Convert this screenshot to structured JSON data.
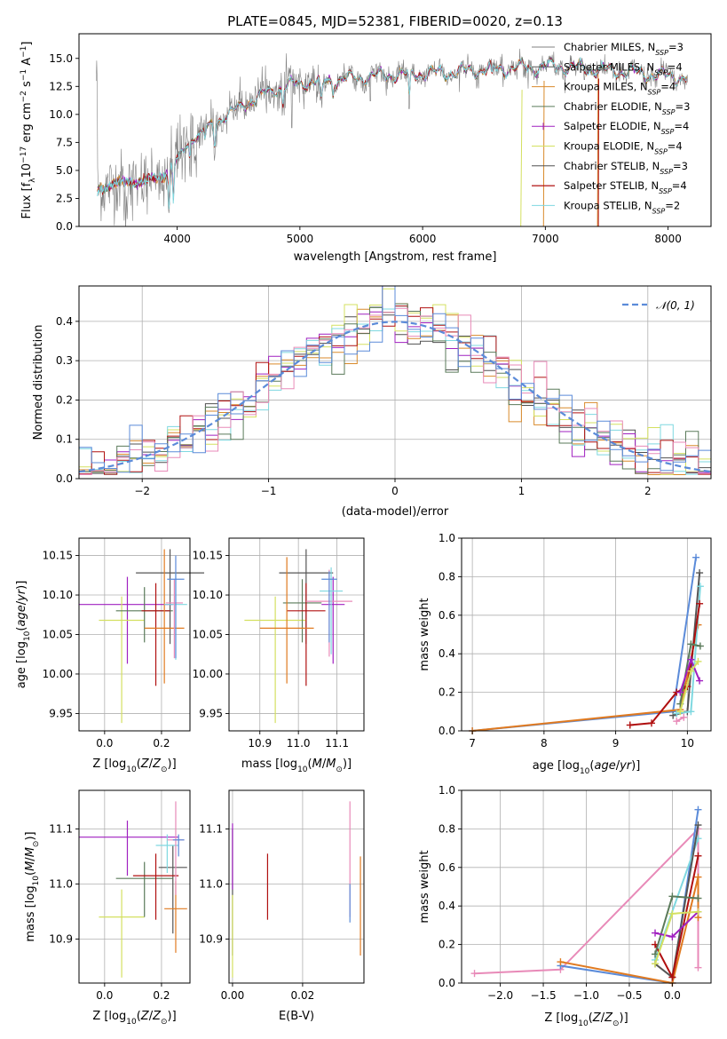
{
  "title": "PLATE=0845, MJD=52381, FIBERID=0020, z=0.13",
  "colors": {
    "chabrier_miles": "#808080",
    "salpeter_miles": "#555555",
    "kroupa_miles": "#d98a2b",
    "chabrier_elodie": "#5a7a5a",
    "salpeter_elodie": "#a020c0",
    "kroupa_elodie": "#d4e060",
    "chabrier_stelib": "#505050",
    "salpeter_stelib": "#b01010",
    "kroupa_stelib": "#7fd8e0",
    "extra_blue": "#5b8bd9",
    "extra_pink": "#e88ab8",
    "extra_orange": "#e07a20",
    "normal": "#5b8bd9"
  },
  "chart_data": [
    {
      "id": "spectrum",
      "type": "line",
      "xlabel": "wavelength [Angstrom, rest frame]",
      "ylabel": "Flux [f_λ10^-17 erg cm^-2 s^-1 A^-1]",
      "xlim": [
        3200,
        8350
      ],
      "ylim": [
        0,
        17.2
      ],
      "xticks": [
        4000,
        5000,
        6000,
        7000,
        8000
      ],
      "yticks": [
        0.0,
        2.5,
        5.0,
        7.5,
        10.0,
        12.5,
        15.0
      ],
      "ytick_labels": [
        "0.0",
        "2.5",
        "5.0",
        "7.5",
        "10.0",
        "12.5",
        "15.0"
      ],
      "legend_position": "top-right",
      "legend": [
        {
          "label": "Chabrier MILES, N",
          "sub": "SSP",
          "tail": "=3",
          "color": "#808080",
          "marker": false
        },
        {
          "label": "Salpeter MILES, N",
          "sub": "SSP",
          "tail": "=4",
          "color": "#555555",
          "marker": false
        },
        {
          "label": "Kroupa MILES, N",
          "sub": "SSP",
          "tail": "=4",
          "color": "#d98a2b",
          "marker": false
        },
        {
          "label": "Chabrier ELODIE, N",
          "sub": "SSP",
          "tail": "=3",
          "color": "#5a7a5a",
          "marker": false
        },
        {
          "label": "Salpeter ELODIE, N",
          "sub": "SSP",
          "tail": "=4",
          "color": "#a020c0",
          "marker": true
        },
        {
          "label": "Kroupa ELODIE, N",
          "sub": "SSP",
          "tail": "=4",
          "color": "#d4e060",
          "marker": false
        },
        {
          "label": "Chabrier STELIB, N",
          "sub": "SSP",
          "tail": "=3",
          "color": "#505050",
          "marker": false
        },
        {
          "label": "Salpeter STELIB, N",
          "sub": "SSP",
          "tail": "=4",
          "color": "#b01010",
          "marker": false
        },
        {
          "label": "Kroupa STELIB, N",
          "sub": "SSP",
          "tail": "=2",
          "color": "#7fd8e0",
          "marker": false
        }
      ],
      "continuum": {
        "x": [
          3350,
          3500,
          3700,
          3900,
          4000,
          4100,
          4300,
          4500,
          4700,
          4900,
          5100,
          5300,
          5500,
          5700,
          5900,
          6100,
          6300,
          6500,
          6700,
          6900,
          7100,
          7300,
          7500,
          7700,
          7900,
          8150
        ],
        "y": [
          3.2,
          3.9,
          4.0,
          4.5,
          6.0,
          7.6,
          9.2,
          10.6,
          11.8,
          12.6,
          12.9,
          13.1,
          13.3,
          13.5,
          13.6,
          13.7,
          13.8,
          14.0,
          14.1,
          14.2,
          14.3,
          14.1,
          13.9,
          13.8,
          13.5,
          13.3
        ]
      }
    },
    {
      "id": "residuals",
      "type": "histogram",
      "xlabel": "(data-model)/error",
      "ylabel": "Normed distribution",
      "xlim": [
        -2.5,
        2.5
      ],
      "ylim": [
        0,
        0.49
      ],
      "xticks": [
        -2,
        -1,
        0,
        1,
        2
      ],
      "xtick_labels": [
        "−2",
        "−1",
        "0",
        "1",
        "2"
      ],
      "yticks": [
        0.0,
        0.1,
        0.2,
        0.3,
        0.4
      ],
      "ytick_labels": [
        "0.0",
        "0.1",
        "0.2",
        "0.3",
        "0.4"
      ],
      "legend_position": "top-right",
      "legend_label": "𝒩(0, 1)",
      "bin_width": 0.1
    },
    {
      "id": "age_vs_Z",
      "type": "errorbar",
      "xlabel": "Z [log10(Z/Z⊙)]",
      "ylabel": "age  [log10(age/yr)]",
      "xlim": [
        -0.09,
        0.3
      ],
      "ylim": [
        9.928,
        10.172
      ],
      "xticks": [
        0.0,
        0.2
      ],
      "xtick_labels": [
        "0.0",
        "0.2"
      ],
      "yticks": [
        9.95,
        10.0,
        10.05,
        10.1,
        10.15
      ],
      "ytick_labels": [
        "9.95",
        "10.00",
        "10.05",
        "10.10",
        "10.15"
      ],
      "points": [
        {
          "x": 0.23,
          "y": 10.128,
          "xerr": 0.12,
          "yerr": [
            0.09,
            0.03
          ],
          "color": "#555555"
        },
        {
          "x": 0.08,
          "y": 10.088,
          "xerr": [
            0.17,
            0.16
          ],
          "yerr": [
            0.075,
            0.035
          ],
          "color": "#a020c0"
        },
        {
          "x": 0.06,
          "y": 10.068,
          "xerr": 0.08,
          "yerr": [
            0.13,
            0.03
          ],
          "color": "#d4e060"
        },
        {
          "x": 0.14,
          "y": 10.08,
          "xerr": 0.1,
          "yerr": [
            0.04,
            0.03
          ],
          "color": "#5a7a5a"
        },
        {
          "x": 0.18,
          "y": 10.08,
          "xerr": 0.05,
          "yerr": [
            0.095,
            0.035
          ],
          "color": "#b01010"
        },
        {
          "x": 0.21,
          "y": 10.058,
          "xerr": 0.07,
          "yerr": [
            0.07,
            0.1
          ],
          "color": "#e07a20"
        },
        {
          "x": 0.25,
          "y": 10.088,
          "xerr": 0.04,
          "yerr": [
            0.07,
            0.04
          ],
          "color": "#7fd8e0"
        },
        {
          "x": 0.245,
          "y": 10.09,
          "xerr": 0.03,
          "yerr": [
            0.07,
            0.03
          ],
          "color": "#e88ab8"
        },
        {
          "x": 0.25,
          "y": 10.12,
          "xerr": 0.03,
          "yerr": [
            0.1,
            0.03
          ],
          "color": "#5b8bd9"
        }
      ]
    },
    {
      "id": "age_vs_mass",
      "type": "errorbar",
      "xlabel": "mass [log10(M/M⊙)]",
      "ylabel": "",
      "xlim": [
        10.82,
        11.17
      ],
      "ylim": [
        9.928,
        10.172
      ],
      "xticks": [
        10.9,
        11.0,
        11.1
      ],
      "xtick_labels": [
        "10.9",
        "11.0",
        "11.1"
      ],
      "yticks": [
        9.95,
        10.0,
        10.05,
        10.1,
        10.15
      ],
      "ytick_labels": [
        "9.95",
        "10.00",
        "10.05",
        "10.10",
        "10.15"
      ],
      "points": [
        {
          "x": 11.02,
          "y": 10.128,
          "xerr": 0.07,
          "yerr": [
            0.09,
            0.03
          ],
          "color": "#555555"
        },
        {
          "x": 11.09,
          "y": 10.088,
          "xerr": 0.03,
          "yerr": [
            0.075,
            0.035
          ],
          "color": "#a020c0"
        },
        {
          "x": 10.94,
          "y": 10.068,
          "xerr": 0.08,
          "yerr": [
            0.13,
            0.03
          ],
          "color": "#d4e060"
        },
        {
          "x": 11.01,
          "y": 10.09,
          "xerr": 0.05,
          "yerr": [
            0.05,
            0.03
          ],
          "color": "#5a7a5a"
        },
        {
          "x": 11.02,
          "y": 10.08,
          "xerr": 0.05,
          "yerr": [
            0.095,
            0.035
          ],
          "color": "#b01010"
        },
        {
          "x": 10.97,
          "y": 10.058,
          "xerr": 0.07,
          "yerr": [
            0.07,
            0.09
          ],
          "color": "#e07a20"
        },
        {
          "x": 11.08,
          "y": 10.092,
          "xerr": 0.06,
          "yerr": [
            0.07,
            0.04
          ],
          "color": "#e88ab8"
        },
        {
          "x": 11.085,
          "y": 10.105,
          "xerr": 0.03,
          "yerr": [
            0.08,
            0.03
          ],
          "color": "#7fd8e0"
        },
        {
          "x": 11.08,
          "y": 10.12,
          "xerr": 0.02,
          "yerr": [
            0.08,
            0.01
          ],
          "color": "#5b8bd9"
        }
      ]
    },
    {
      "id": "weight_vs_age",
      "type": "line",
      "xlabel": "age  [log10(age/yr)]",
      "ylabel": "mass weight",
      "xlim": [
        6.85,
        10.33
      ],
      "ylim": [
        0.0,
        1.0
      ],
      "xticks": [
        7,
        8,
        9,
        10
      ],
      "xtick_labels": [
        "7",
        "8",
        "9",
        "10"
      ],
      "yticks": [
        0.0,
        0.2,
        0.4,
        0.6,
        0.8,
        1.0
      ],
      "ytick_labels": [
        "0.0",
        "0.2",
        "0.4",
        "0.6",
        "0.8",
        "1.0"
      ],
      "series": [
        {
          "color": "#5b8bd9",
          "x": [
            7.0,
            9.8,
            10.12
          ],
          "y": [
            0.0,
            0.1,
            0.9
          ]
        },
        {
          "color": "#e07a20",
          "x": [
            7.0,
            9.9,
            10.15
          ],
          "y": [
            0.0,
            0.11,
            0.55
          ]
        },
        {
          "color": "#555555",
          "x": [
            9.8,
            10.0,
            10.17
          ],
          "y": [
            0.08,
            0.1,
            0.82
          ]
        },
        {
          "color": "#7fd8e0",
          "x": [
            9.85,
            10.05,
            10.18
          ],
          "y": [
            0.09,
            0.1,
            0.75
          ]
        },
        {
          "color": "#b01010",
          "x": [
            9.2,
            9.5,
            9.85,
            10.0,
            10.17
          ],
          "y": [
            0.03,
            0.04,
            0.2,
            0.23,
            0.66
          ]
        },
        {
          "color": "#5a7a5a",
          "x": [
            9.9,
            10.05,
            10.18
          ],
          "y": [
            0.14,
            0.45,
            0.44
          ]
        },
        {
          "color": "#a020c0",
          "x": [
            9.9,
            10.05,
            10.17
          ],
          "y": [
            0.2,
            0.37,
            0.26
          ]
        },
        {
          "color": "#d4e060",
          "x": [
            9.9,
            10.05,
            10.15
          ],
          "y": [
            0.1,
            0.31,
            0.36
          ]
        },
        {
          "color": "#e88ab8",
          "x": [
            9.85,
            9.95
          ],
          "y": [
            0.05,
            0.07
          ]
        }
      ]
    },
    {
      "id": "mass_vs_Z",
      "type": "errorbar",
      "xlabel": "Z [log10(Z/Z⊙)]",
      "ylabel": "mass [log10(M/M⊙)]",
      "xlim": [
        -0.09,
        0.3
      ],
      "ylim": [
        10.82,
        11.17
      ],
      "xticks": [
        0.0,
        0.2
      ],
      "xtick_labels": [
        "0.0",
        "0.2"
      ],
      "yticks": [
        10.9,
        11.0,
        11.1
      ],
      "ytick_labels": [
        "10.9",
        "11.0",
        "11.1"
      ],
      "points": [
        {
          "x": 0.24,
          "y": 11.03,
          "xerr": 0.05,
          "yerr": [
            0.12,
            0.04
          ],
          "color": "#555555"
        },
        {
          "x": 0.08,
          "y": 11.085,
          "xerr": [
            0.17,
            0.18
          ],
          "yerr": [
            0.07,
            0.03
          ],
          "color": "#a020c0"
        },
        {
          "x": 0.06,
          "y": 10.94,
          "xerr": 0.08,
          "yerr": [
            0.11,
            0.05
          ],
          "color": "#d4e060"
        },
        {
          "x": 0.14,
          "y": 11.01,
          "xerr": 0.1,
          "yerr": [
            0.07,
            0.03
          ],
          "color": "#5a7a5a"
        },
        {
          "x": 0.18,
          "y": 11.015,
          "xerr": 0.08,
          "yerr": [
            0.08,
            0.04
          ],
          "color": "#b01010"
        },
        {
          "x": 0.25,
          "y": 10.955,
          "xerr": 0.04,
          "yerr": [
            0.08,
            0.05
          ],
          "color": "#e07a20"
        },
        {
          "x": 0.22,
          "y": 11.07,
          "xerr": 0.04,
          "yerr": [
            0.05,
            0.02
          ],
          "color": "#7fd8e0"
        },
        {
          "x": 0.25,
          "y": 11.08,
          "xerr": 0.03,
          "yerr": [
            0.1,
            0.07
          ],
          "color": "#e88ab8"
        },
        {
          "x": 0.26,
          "y": 11.08,
          "xerr": 0.02,
          "yerr": [
            0.03,
            0.01
          ],
          "color": "#5b8bd9"
        }
      ]
    },
    {
      "id": "mass_vs_ebv",
      "type": "errorbar",
      "xlabel": "E(B-V)",
      "ylabel": "",
      "xlim": [
        -0.001,
        0.0375
      ],
      "ylim": [
        10.82,
        11.17
      ],
      "xticks": [
        0.0,
        0.02
      ],
      "xtick_labels": [
        "0.00",
        "0.02"
      ],
      "yticks": [
        10.9,
        11.0,
        11.1
      ],
      "ytick_labels": [
        "10.9",
        "11.0",
        "11.1"
      ],
      "points": [
        {
          "x": 0.0,
          "y": 11.0,
          "xerr": 0,
          "yerr": [
            0.13,
            0.1
          ],
          "color": "#555555"
        },
        {
          "x": 0.0,
          "y": 11.06,
          "xerr": 0,
          "yerr": [
            0.07,
            0.05
          ],
          "color": "#a020c0"
        },
        {
          "x": 0.0,
          "y": 10.95,
          "xerr": 0,
          "yerr": [
            0.12,
            0.03
          ],
          "color": "#d4e060"
        },
        {
          "x": 0.01,
          "y": 10.995,
          "xerr": 0,
          "yerr": [
            0.06,
            0.06
          ],
          "color": "#b01010"
        },
        {
          "x": 0.0335,
          "y": 11.04,
          "xerr": 0,
          "yerr": [
            0.1,
            0.11
          ],
          "color": "#e88ab8"
        },
        {
          "x": 0.0335,
          "y": 10.98,
          "xerr": 0,
          "yerr": [
            0.05,
            0.02
          ],
          "color": "#5b8bd9"
        },
        {
          "x": 0.0365,
          "y": 10.96,
          "xerr": 0,
          "yerr": [
            0.09,
            0.09
          ],
          "color": "#e07a20"
        }
      ]
    },
    {
      "id": "weight_vs_Z",
      "type": "line",
      "xlabel": "Z [log10(Z/Z⊙)]",
      "ylabel": "mass weight",
      "xlim": [
        -2.45,
        0.45
      ],
      "ylim": [
        0.0,
        1.0
      ],
      "xticks": [
        -2.0,
        -1.5,
        -1.0,
        -0.5,
        0.0
      ],
      "xtick_labels": [
        "−2.0",
        "−1.5",
        "−1.0",
        "−0.5",
        "0.0"
      ],
      "yticks": [
        0.0,
        0.2,
        0.4,
        0.6,
        0.8,
        1.0
      ],
      "ytick_labels": [
        "0.0",
        "0.2",
        "0.4",
        "0.6",
        "0.8",
        "1.0"
      ],
      "series": [
        {
          "color": "#e88ab8",
          "x": [
            -2.3,
            -1.3,
            0.3,
            0.3
          ],
          "y": [
            0.05,
            0.07,
            0.8,
            0.08
          ]
        },
        {
          "color": "#5b8bd9",
          "x": [
            -1.3,
            0.0,
            0.3
          ],
          "y": [
            0.09,
            0.0,
            0.9
          ]
        },
        {
          "color": "#e07a20",
          "x": [
            -1.3,
            0.0,
            0.3,
            0.3
          ],
          "y": [
            0.11,
            0.0,
            0.55,
            0.34
          ]
        },
        {
          "color": "#7fd8e0",
          "x": [
            -0.2,
            0.3
          ],
          "y": [
            0.12,
            0.75
          ]
        },
        {
          "color": "#555555",
          "x": [
            -0.2,
            0.0,
            0.3
          ],
          "y": [
            0.1,
            0.03,
            0.82
          ]
        },
        {
          "color": "#b01010",
          "x": [
            -0.2,
            0.0,
            0.3
          ],
          "y": [
            0.2,
            0.03,
            0.66
          ]
        },
        {
          "color": "#5a7a5a",
          "x": [
            -0.2,
            0.0,
            0.3
          ],
          "y": [
            0.15,
            0.45,
            0.44
          ]
        },
        {
          "color": "#a020c0",
          "x": [
            -0.2,
            0.0,
            0.3
          ],
          "y": [
            0.26,
            0.24,
            0.37
          ]
        },
        {
          "color": "#d4e060",
          "x": [
            -0.2,
            0.0,
            0.3
          ],
          "y": [
            0.1,
            0.36,
            0.37
          ]
        }
      ]
    }
  ]
}
